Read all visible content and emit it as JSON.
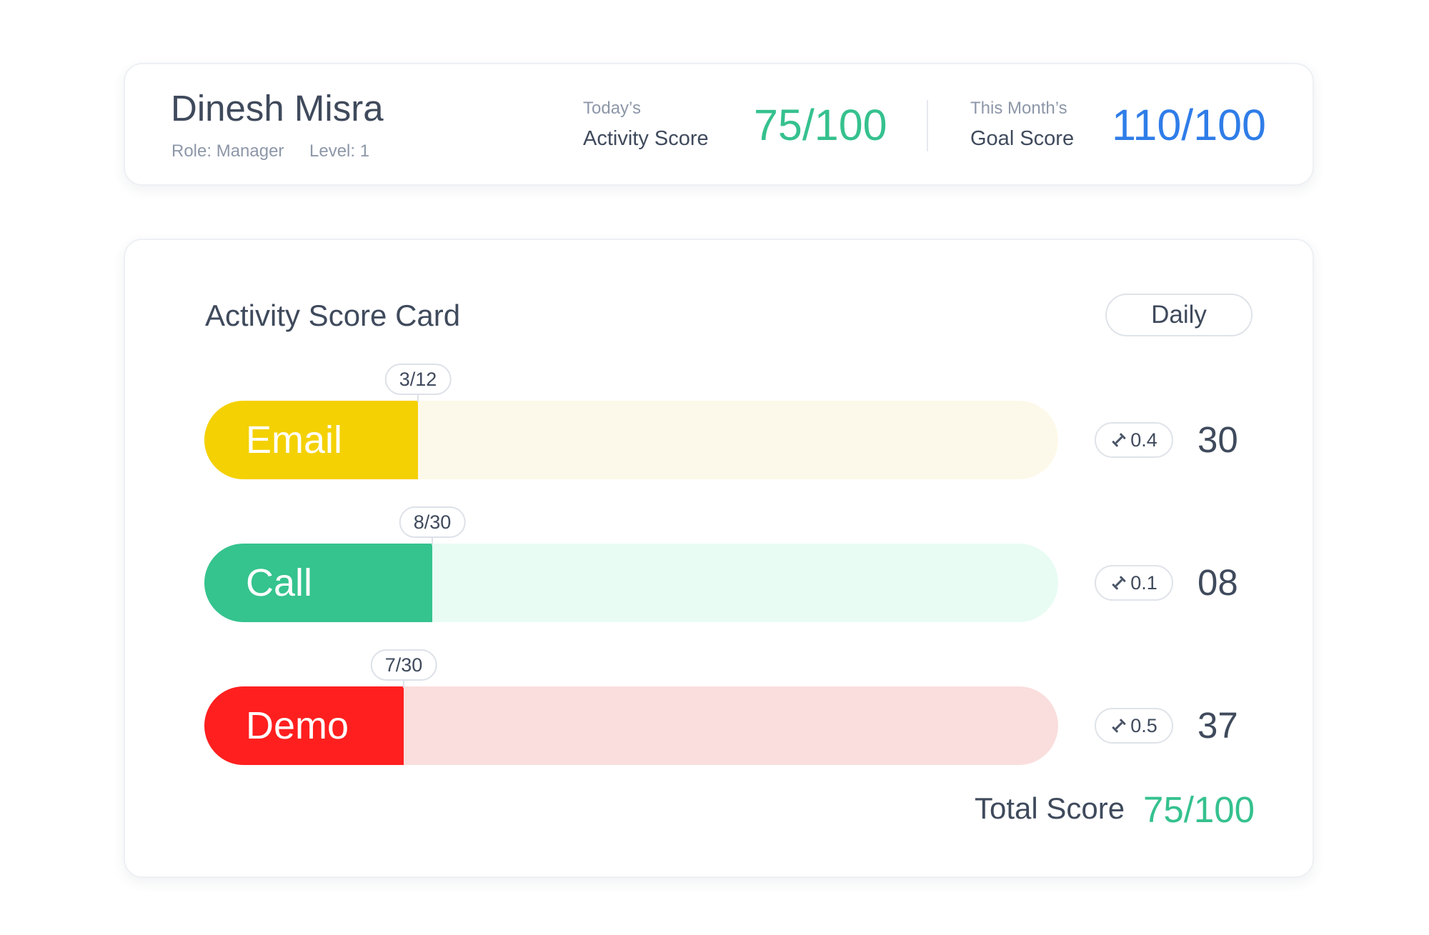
{
  "profile": {
    "name": "Dinesh Misra",
    "role_label": "Role: Manager",
    "level_label": "Level: 1",
    "activity": {
      "caption": "Today’s",
      "label": "Activity Score",
      "value": "75/100",
      "color": "#35c18e"
    },
    "goal": {
      "caption": "This Month’s",
      "label": "Goal Score",
      "value": "110/100",
      "color": "#2f7de8"
    }
  },
  "scorecard": {
    "title": "Activity Score Card",
    "period_button": "Daily",
    "activities": [
      {
        "label": "Email",
        "progress": "3/12",
        "done": 3,
        "target": 12,
        "weight": "0.4",
        "score": "30",
        "color": "#f4d103",
        "track_color": "#fdf9ea"
      },
      {
        "label": "Call",
        "progress": "8/30",
        "done": 8,
        "target": 30,
        "weight": "0.1",
        "score": "08",
        "color": "#35c38e",
        "track_color": "#e8fcf3"
      },
      {
        "label": "Demo",
        "progress": "7/30",
        "done": 7,
        "target": 30,
        "weight": "0.5",
        "score": "37",
        "color": "#ff1f1f",
        "track_color": "#f9dedd"
      }
    ],
    "weight_icon": "weight-icon",
    "total_label": "Total Score",
    "total_value": "75/100",
    "total_color": "#35c18e"
  }
}
